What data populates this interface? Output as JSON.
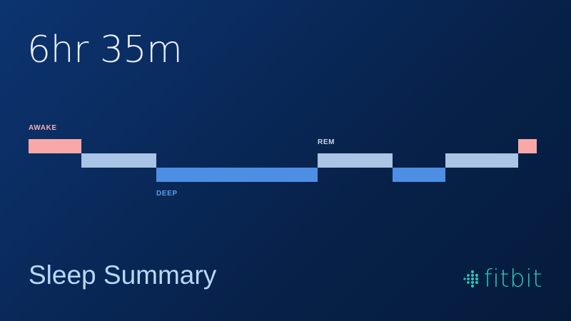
{
  "summary": {
    "duration": "6hr 35m",
    "title": "Sleep Summary"
  },
  "brand": {
    "name": "fitbit",
    "icon": "fitbit-dots-icon",
    "color": "#2ec4b8"
  },
  "stages": {
    "awake": {
      "label": "AWAKE",
      "color": "#f9a8a8",
      "label_color": "#f4b0b0"
    },
    "light": {
      "label": "",
      "color": "#a9c4e4"
    },
    "rem": {
      "label": "REM",
      "color": "#a9c4e4",
      "label_color": "#c6d6ea"
    },
    "deep": {
      "label": "DEEP",
      "color": "#4c8fe4",
      "label_color": "#5b9ef0"
    }
  },
  "hypnogram": [
    {
      "stage": "awake",
      "fraction": 0.1024
    },
    {
      "stage": "light",
      "fraction": 0.1457
    },
    {
      "stage": "deep",
      "fraction": 0.315
    },
    {
      "stage": "rem",
      "fraction": 0.1457
    },
    {
      "stage": "deep",
      "fraction": 0.1024
    },
    {
      "stage": "light",
      "fraction": 0.1417
    },
    {
      "stage": "awake",
      "fraction": 0.0354
    }
  ]
}
